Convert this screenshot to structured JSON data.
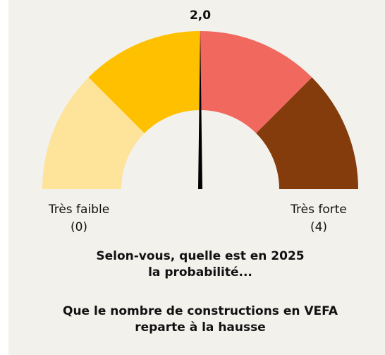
{
  "chart_data": {
    "type": "gauge",
    "value": 2,
    "value_label": "2,0",
    "range": [
      0,
      4
    ],
    "bands": [
      {
        "from": 0,
        "to": 1,
        "color": "#fee39b"
      },
      {
        "from": 1,
        "to": 2,
        "color": "#ffc000"
      },
      {
        "from": 2,
        "to": 3,
        "color": "#f0685e"
      },
      {
        "from": 3,
        "to": 4,
        "color": "#843c0c"
      }
    ],
    "needle_color": "#000000",
    "ticks": [
      {
        "value": 0,
        "label": "(0)"
      },
      {
        "value": 4,
        "label": "(4)"
      }
    ],
    "end_labels": [
      "Très faible",
      "Très forte"
    ],
    "title": [
      "Selon-vous, quelle est en 2025",
      "la probabilité...",
      "Que le nombre de constructions en VEFA",
      "reparte à la hausse"
    ]
  }
}
